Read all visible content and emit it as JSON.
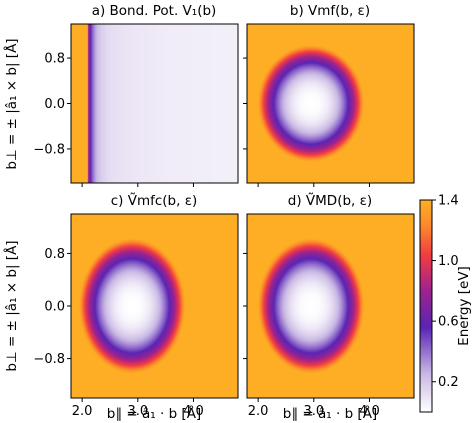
{
  "chart_data": {
    "type": "heatmap",
    "colormap": "white-purple-red-orange",
    "x_range": [
      1.8,
      4.8
    ],
    "y_range": [
      -1.4,
      1.4
    ],
    "x_ticks": [
      2.0,
      3.0,
      4.0
    ],
    "x_tick_labels": [
      "2.0",
      "3.0",
      "4.0"
    ],
    "y_ticks": [
      0.8,
      0.0,
      -0.8
    ],
    "y_tick_labels": [
      "0.8",
      "0.0",
      "−0.8"
    ],
    "xlabel": "b∥ = â₁ · b [Å]",
    "ylabel": "b⊥ = ± |â₁ × b| [Å]",
    "colorbar": {
      "label": "Energy [eV]",
      "range": [
        0.0,
        1.4
      ],
      "ticks": [
        1.4,
        1.0,
        0.6,
        0.2
      ],
      "tick_labels": [
        "1.4",
        "1.0",
        "0.6",
        "0.2"
      ]
    },
    "panels": [
      {
        "id": "a",
        "title": "a) Bond. Pot. V₁(b)",
        "model": "bond_potential",
        "minimum_energy_eV": 0.05,
        "wall_position_A": 2.1
      },
      {
        "id": "b",
        "title": "b) Vmf(b, ε)",
        "model": "well",
        "center_A": [
          2.95,
          0.0
        ],
        "minimum_energy_eV": 0.0,
        "saturation_energy_eV": 1.4
      },
      {
        "id": "c",
        "title": "c) Ṽmfc(b, ε)",
        "model": "well",
        "center_A": [
          2.9,
          0.0
        ],
        "minimum_energy_eV": 0.0,
        "saturation_energy_eV": 1.4
      },
      {
        "id": "d",
        "title": "d) ṼMD(b, ε)",
        "model": "well",
        "center_A": [
          2.95,
          0.0
        ],
        "minimum_energy_eV": 0.0,
        "saturation_energy_eV": 1.4
      }
    ]
  }
}
